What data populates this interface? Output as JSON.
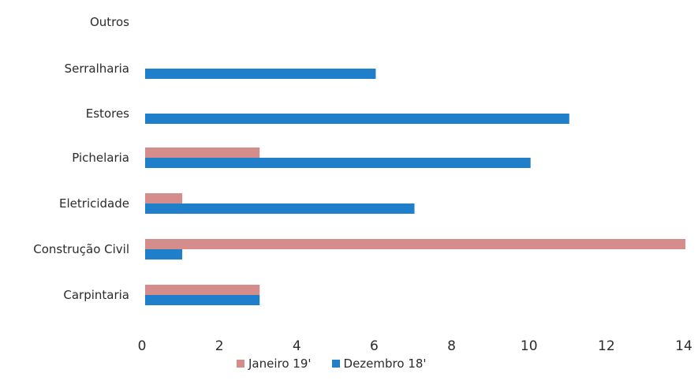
{
  "chart_data": {
    "type": "bar",
    "orientation": "horizontal",
    "categories": [
      "Carpintaria",
      "Construção Civil",
      "Eletricidade",
      "Pichelaria",
      "Estores",
      "Serralharia",
      "Outros"
    ],
    "series": [
      {
        "name": "Janeiro 19'",
        "color": "#d48d8b",
        "values": [
          3,
          14,
          1,
          3,
          0,
          0,
          0
        ]
      },
      {
        "name": "Dezembro 18'",
        "color": "#1f7fca",
        "values": [
          3,
          1,
          7,
          10,
          11,
          6,
          0
        ]
      }
    ],
    "xlim": [
      0,
      14
    ],
    "xticks": [
      0,
      2,
      4,
      6,
      8,
      10,
      12,
      14
    ],
    "grid": false,
    "legend": "bottom"
  }
}
